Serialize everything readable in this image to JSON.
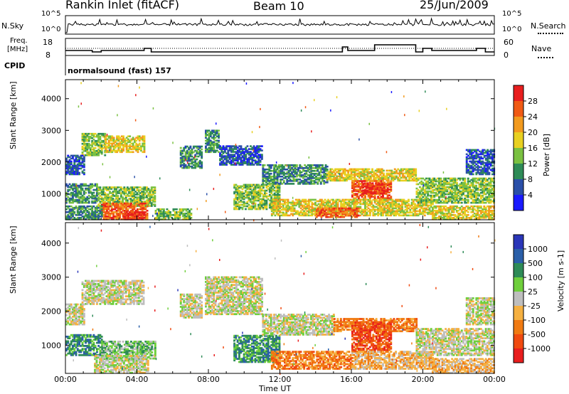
{
  "header": {
    "station": "Rankin Inlet (fitACF)",
    "beam": "Beam 10",
    "date": "25/Jun/2009"
  },
  "nsky_panel": {
    "left_label": "N.Sky",
    "right_label": "N.Search",
    "left_ticks": [
      "10^5",
      "10^0"
    ],
    "right_ticks": [
      "10^5",
      "10^0"
    ]
  },
  "freq_panel": {
    "left_label_1": "Freq.",
    "left_label_2": "[MHz]",
    "right_label": "Nave",
    "left_ticks": [
      "18",
      "8"
    ],
    "right_ticks": [
      "60",
      "0"
    ]
  },
  "cpid": {
    "label": "CPID",
    "value": "normalsound (fast) 157"
  },
  "chart_data": [
    {
      "type": "heatmap",
      "name": "power",
      "ylabel": "Slant Range [km]",
      "ylim": [
        180,
        4600
      ],
      "yticks": [
        "1000",
        "2000",
        "3000",
        "4000"
      ],
      "xlim": [
        0,
        24
      ],
      "colorbar_label": "Power [dB]",
      "colorbar_ticks": [
        "4",
        "8",
        "12",
        "16",
        "20",
        "24",
        "28"
      ],
      "colors": [
        "#1a1aff",
        "#2a4fa8",
        "#2e8b57",
        "#7ac141",
        "#e8d020",
        "#f29a1e",
        "#f05a14",
        "#e81e1e"
      ],
      "regions": [
        {
          "t0": 0.9,
          "t1": 2.2,
          "r0": 2200,
          "r1": 2900,
          "level": 3
        },
        {
          "t0": 2.2,
          "t1": 4.4,
          "r0": 2300,
          "r1": 2800,
          "level": 4
        },
        {
          "t0": 0.0,
          "t1": 1.0,
          "r0": 1600,
          "r1": 2200,
          "level": 1
        },
        {
          "t0": 0.0,
          "t1": 1.8,
          "r0": 700,
          "r1": 1300,
          "level": 2
        },
        {
          "t0": 1.8,
          "t1": 5.0,
          "r0": 600,
          "r1": 1200,
          "level": 3
        },
        {
          "t0": 2.0,
          "t1": 4.6,
          "r0": 180,
          "r1": 700,
          "level": 6
        },
        {
          "t0": 3.2,
          "t1": 4.4,
          "r0": 180,
          "r1": 450,
          "level": 7
        },
        {
          "t0": 0.0,
          "t1": 2.0,
          "r0": 180,
          "r1": 600,
          "level": 2
        },
        {
          "t0": 5.0,
          "t1": 7.0,
          "r0": 180,
          "r1": 500,
          "level": 3
        },
        {
          "t0": 6.4,
          "t1": 7.6,
          "r0": 1800,
          "r1": 2500,
          "level": 2
        },
        {
          "t0": 7.8,
          "t1": 8.6,
          "r0": 2300,
          "r1": 3000,
          "level": 2
        },
        {
          "t0": 8.6,
          "t1": 11.0,
          "r0": 1900,
          "r1": 2500,
          "level": 1
        },
        {
          "t0": 9.4,
          "t1": 12.0,
          "r0": 500,
          "r1": 1300,
          "level": 3
        },
        {
          "t0": 11.0,
          "t1": 14.6,
          "r0": 1300,
          "r1": 1900,
          "level": 2
        },
        {
          "t0": 14.6,
          "t1": 19.6,
          "r0": 1400,
          "r1": 1800,
          "level": 4
        },
        {
          "t0": 16.0,
          "t1": 18.2,
          "r0": 800,
          "r1": 1400,
          "level": 6
        },
        {
          "t0": 16.6,
          "t1": 17.8,
          "r0": 1000,
          "r1": 1350,
          "level": 7
        },
        {
          "t0": 11.5,
          "t1": 20.5,
          "r0": 300,
          "r1": 800,
          "level": 4
        },
        {
          "t0": 14.0,
          "t1": 16.4,
          "r0": 250,
          "r1": 550,
          "level": 6
        },
        {
          "t0": 19.6,
          "t1": 24.0,
          "r0": 700,
          "r1": 1500,
          "level": 3
        },
        {
          "t0": 22.4,
          "t1": 24.0,
          "r0": 1600,
          "r1": 2400,
          "level": 1
        },
        {
          "t0": 20.5,
          "t1": 24.0,
          "r0": 180,
          "r1": 600,
          "level": 4
        }
      ]
    },
    {
      "type": "heatmap",
      "name": "velocity",
      "ylabel": "Slant Range [km]",
      "xlabel": "Time UT",
      "ylim": [
        180,
        4600
      ],
      "yticks": [
        "1000",
        "2000",
        "3000",
        "4000"
      ],
      "xlim": [
        0,
        24
      ],
      "xticks": [
        "00:00",
        "04:00",
        "08:00",
        "12:00",
        "16:00",
        "20:00",
        "00:00"
      ],
      "colorbar_label": "Velocity [m s-1]",
      "colorbar_ticks": [
        "1000",
        "500",
        "100",
        "25",
        "-25",
        "-100",
        "-500",
        "-1000"
      ],
      "colors": [
        "#2a36b8",
        "#2a5fa8",
        "#2e8b57",
        "#6fcf3c",
        "#bebebe",
        "#f5b041",
        "#f07a12",
        "#f04a10",
        "#e81e1e"
      ],
      "regions": [
        {
          "t0": 0.9,
          "t1": 4.4,
          "r0": 2200,
          "r1": 2900,
          "level": 4
        },
        {
          "t0": 0.0,
          "t1": 1.0,
          "r0": 1600,
          "r1": 2200,
          "level": 4
        },
        {
          "t0": 0.0,
          "t1": 2.0,
          "r0": 700,
          "r1": 1300,
          "level": 2
        },
        {
          "t0": 2.0,
          "t1": 5.0,
          "r0": 600,
          "r1": 1100,
          "level": 3
        },
        {
          "t0": 1.6,
          "t1": 4.6,
          "r0": 180,
          "r1": 700,
          "level": 4
        },
        {
          "t0": 6.4,
          "t1": 7.6,
          "r0": 1800,
          "r1": 2500,
          "level": 4
        },
        {
          "t0": 7.8,
          "t1": 11.0,
          "r0": 1900,
          "r1": 3000,
          "level": 4
        },
        {
          "t0": 9.4,
          "t1": 12.0,
          "r0": 500,
          "r1": 1300,
          "level": 2
        },
        {
          "t0": 11.0,
          "t1": 15.0,
          "r0": 1300,
          "r1": 1900,
          "level": 4
        },
        {
          "t0": 15.0,
          "t1": 19.6,
          "r0": 1400,
          "r1": 1800,
          "level": 6
        },
        {
          "t0": 16.0,
          "t1": 18.2,
          "r0": 800,
          "r1": 1700,
          "level": 7
        },
        {
          "t0": 11.5,
          "t1": 16.0,
          "r0": 300,
          "r1": 800,
          "level": 6
        },
        {
          "t0": 16.0,
          "t1": 20.5,
          "r0": 300,
          "r1": 800,
          "level": 5
        },
        {
          "t0": 19.6,
          "t1": 24.0,
          "r0": 700,
          "r1": 1500,
          "level": 4
        },
        {
          "t0": 22.4,
          "t1": 24.0,
          "r0": 1600,
          "r1": 2400,
          "level": 4
        },
        {
          "t0": 20.5,
          "t1": 24.0,
          "r0": 180,
          "r1": 600,
          "level": 5
        }
      ]
    }
  ]
}
